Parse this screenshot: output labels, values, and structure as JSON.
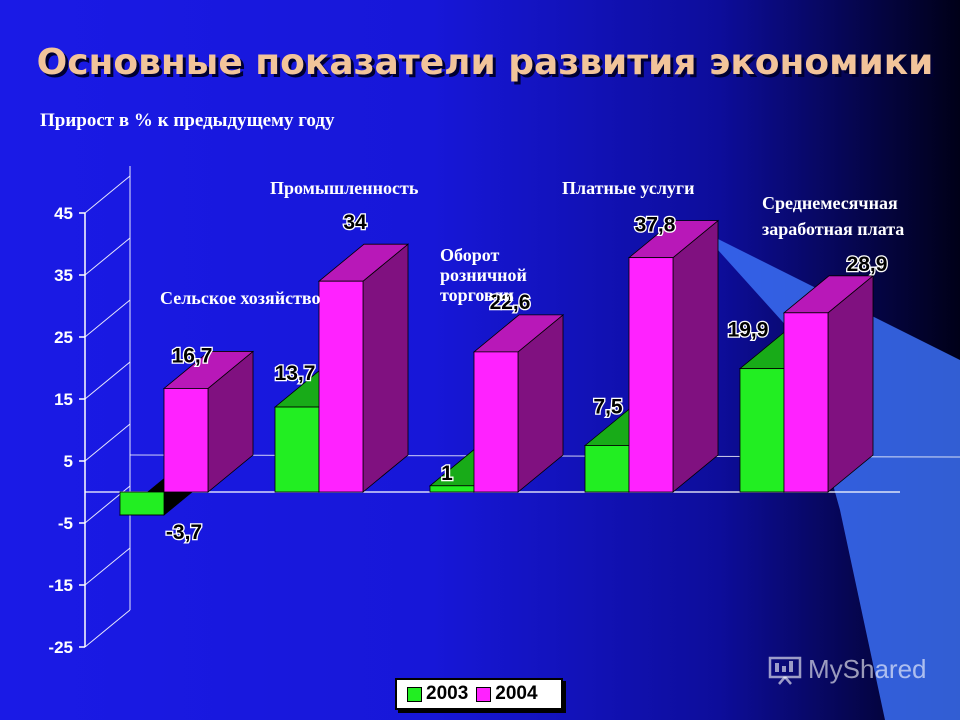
{
  "title": "Основные показатели развития экономики",
  "subtitle": "Прирост в % к предыдущему году",
  "watermark": "MyShared",
  "colors": {
    "s2003": "#22ee22",
    "s2004": "#ff22ff",
    "background": "#1717d8"
  },
  "chart_data": {
    "type": "bar",
    "title": "Основные показатели развития экономики",
    "ylabel": "Прирост в % к предыдущему году",
    "categories": [
      "Сельское хозяйство",
      "Промышленность",
      "Оборот розничной торговли",
      "Платные услуги",
      "Среднемесячная заработная плата"
    ],
    "series": [
      {
        "name": "2003",
        "values": [
          -3.7,
          13.7,
          1,
          7.5,
          19.9
        ],
        "labels": [
          "-3,7",
          "13,7",
          "1",
          "7,5",
          "19,9"
        ]
      },
      {
        "name": "2004",
        "values": [
          16.7,
          34,
          22.6,
          37.8,
          28.9
        ],
        "labels": [
          "16,7",
          "34",
          "22,6",
          "37,8",
          "28,9"
        ]
      }
    ],
    "yticks": [
      45,
      35,
      25,
      15,
      5,
      -5,
      -15,
      -25
    ],
    "ylim": [
      -25,
      45
    ],
    "legend_position": "bottom"
  }
}
